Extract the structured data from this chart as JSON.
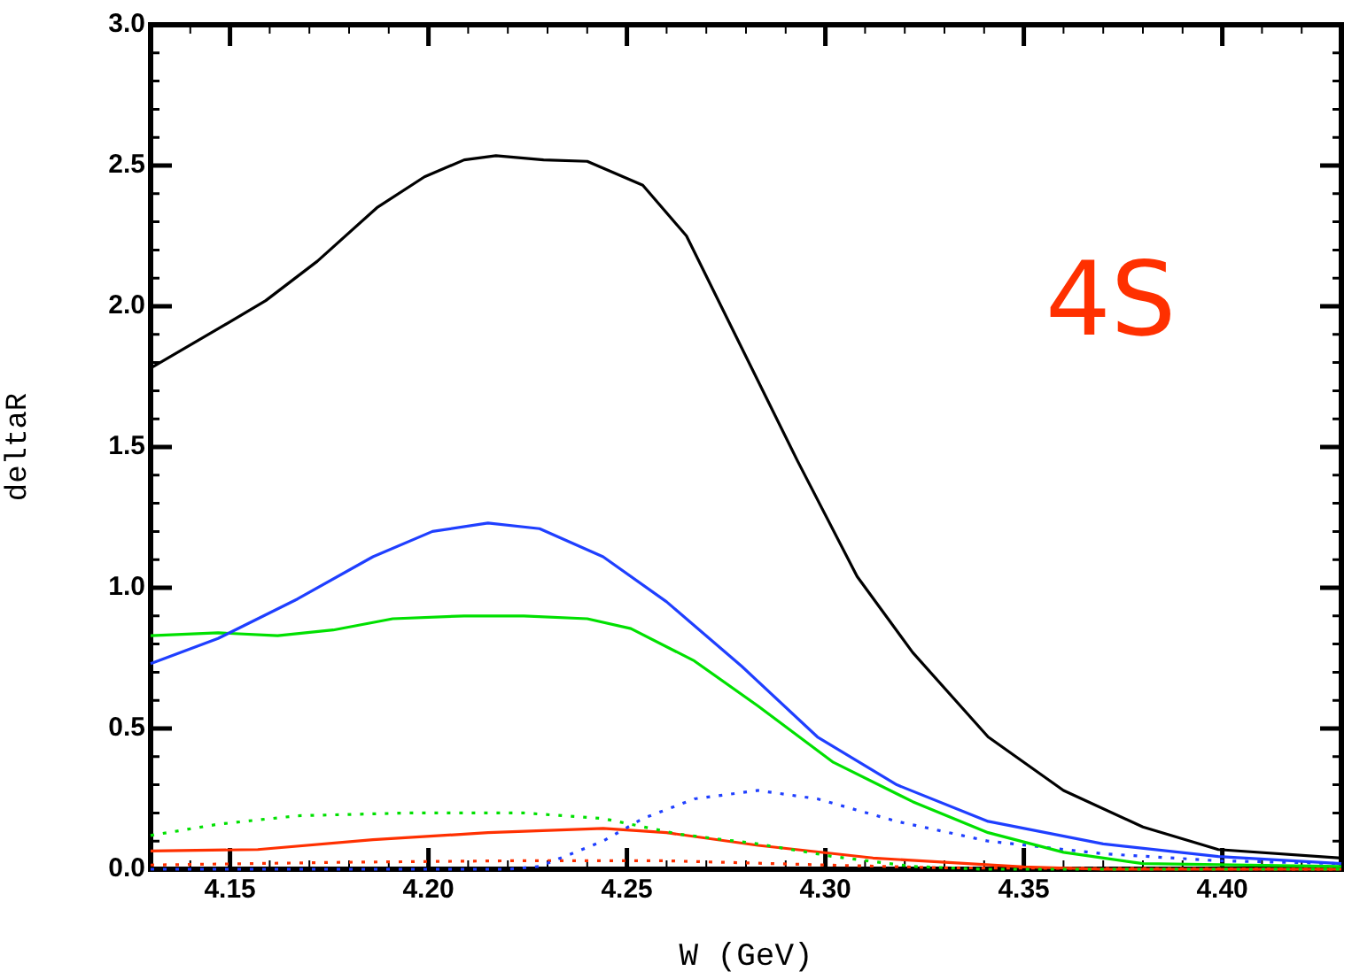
{
  "chart_data": {
    "type": "line",
    "xlabel": "W (GeV)",
    "ylabel": "deltaR",
    "annotations": [
      "4S"
    ],
    "xlim": [
      4.13,
      4.43
    ],
    "ylim": [
      0,
      3.0
    ],
    "xticks": [
      {
        "value": 4.13,
        "label": null
      },
      {
        "value": 4.14,
        "label": null
      },
      {
        "value": 4.15,
        "label": "4.15"
      },
      {
        "value": 4.16,
        "label": null
      },
      {
        "value": 4.17,
        "label": null
      },
      {
        "value": 4.18,
        "label": null
      },
      {
        "value": 4.19,
        "label": null
      },
      {
        "value": 4.2,
        "label": "4.20"
      },
      {
        "value": 4.21,
        "label": null
      },
      {
        "value": 4.22,
        "label": null
      },
      {
        "value": 4.23,
        "label": null
      },
      {
        "value": 4.24,
        "label": null
      },
      {
        "value": 4.25,
        "label": "4.25"
      },
      {
        "value": 4.26,
        "label": null
      },
      {
        "value": 4.27,
        "label": null
      },
      {
        "value": 4.28,
        "label": null
      },
      {
        "value": 4.29,
        "label": null
      },
      {
        "value": 4.3,
        "label": "4.30"
      },
      {
        "value": 4.31,
        "label": null
      },
      {
        "value": 4.32,
        "label": null
      },
      {
        "value": 4.33,
        "label": null
      },
      {
        "value": 4.34,
        "label": null
      },
      {
        "value": 4.35,
        "label": "4.35"
      },
      {
        "value": 4.36,
        "label": null
      },
      {
        "value": 4.37,
        "label": null
      },
      {
        "value": 4.38,
        "label": null
      },
      {
        "value": 4.39,
        "label": null
      },
      {
        "value": 4.4,
        "label": "4.40"
      },
      {
        "value": 4.41,
        "label": null
      },
      {
        "value": 4.42,
        "label": null
      }
    ],
    "yticks": [
      {
        "value": 0,
        "label": "0.0"
      },
      {
        "value": 0.1,
        "label": null
      },
      {
        "value": 0.2,
        "label": null
      },
      {
        "value": 0.3,
        "label": null
      },
      {
        "value": 0.4,
        "label": null
      },
      {
        "value": 0.5,
        "label": "0.5"
      },
      {
        "value": 0.6,
        "label": null
      },
      {
        "value": 0.7,
        "label": null
      },
      {
        "value": 0.8,
        "label": null
      },
      {
        "value": 0.9,
        "label": null
      },
      {
        "value": 1.0,
        "label": "1.0"
      },
      {
        "value": 1.1,
        "label": null
      },
      {
        "value": 1.2,
        "label": null
      },
      {
        "value": 1.3,
        "label": null
      },
      {
        "value": 1.4,
        "label": null
      },
      {
        "value": 1.5,
        "label": "1.5"
      },
      {
        "value": 1.6,
        "label": null
      },
      {
        "value": 1.7,
        "label": null
      },
      {
        "value": 1.8,
        "label": null
      },
      {
        "value": 1.9,
        "label": null
      },
      {
        "value": 2.0,
        "label": "2.0"
      },
      {
        "value": 2.1,
        "label": null
      },
      {
        "value": 2.2,
        "label": null
      },
      {
        "value": 2.3,
        "label": null
      },
      {
        "value": 2.4,
        "label": null
      },
      {
        "value": 2.5,
        "label": "2.5"
      },
      {
        "value": 2.6,
        "label": null
      },
      {
        "value": 2.7,
        "label": null
      },
      {
        "value": 2.8,
        "label": null
      },
      {
        "value": 2.9,
        "label": null
      },
      {
        "value": 3.0,
        "label": "3.0"
      }
    ],
    "grid": false,
    "legend": false,
    "marker": "none",
    "series": [
      {
        "color": "#000000",
        "line_style": "solid",
        "x": [
          4.13,
          4.147,
          4.159,
          4.172,
          4.187,
          4.199,
          4.209,
          4.217,
          4.229,
          4.24,
          4.254,
          4.265,
          4.279,
          4.293,
          4.308,
          4.322,
          4.341,
          4.36,
          4.38,
          4.399,
          4.43
        ],
        "values": [
          1.78,
          1.92,
          2.02,
          2.16,
          2.35,
          2.46,
          2.52,
          2.535,
          2.52,
          2.515,
          2.43,
          2.25,
          1.85,
          1.45,
          1.04,
          0.77,
          0.47,
          0.28,
          0.15,
          0.07,
          0.04
        ]
      },
      {
        "color": "#1f3fff",
        "line_style": "solid",
        "x": [
          4.13,
          4.147,
          4.167,
          4.186,
          4.201,
          4.215,
          4.228,
          4.244,
          4.26,
          4.279,
          4.298,
          4.318,
          4.341,
          4.37,
          4.399,
          4.43
        ],
        "values": [
          0.73,
          0.82,
          0.96,
          1.11,
          1.2,
          1.23,
          1.21,
          1.11,
          0.95,
          0.72,
          0.47,
          0.3,
          0.17,
          0.09,
          0.045,
          0.02
        ]
      },
      {
        "color": "#00e000",
        "line_style": "solid",
        "x": [
          4.13,
          4.147,
          4.162,
          4.176,
          4.191,
          4.209,
          4.224,
          4.24,
          4.251,
          4.267,
          4.283,
          4.302,
          4.322,
          4.341,
          4.36,
          4.38,
          4.43
        ],
        "values": [
          0.83,
          0.84,
          0.83,
          0.85,
          0.89,
          0.9,
          0.9,
          0.89,
          0.855,
          0.74,
          0.58,
          0.38,
          0.24,
          0.13,
          0.06,
          0.02,
          0.01
        ]
      },
      {
        "color": "#00e000",
        "line_style": "dotted",
        "x": [
          4.13,
          4.147,
          4.167,
          4.195,
          4.224,
          4.244,
          4.263,
          4.283,
          4.302,
          4.322,
          4.34,
          4.43
        ],
        "values": [
          0.12,
          0.16,
          0.19,
          0.2,
          0.2,
          0.18,
          0.125,
          0.09,
          0.045,
          0.01,
          0,
          0
        ]
      },
      {
        "color": "#1f3fff",
        "line_style": "dotted",
        "x": [
          4.13,
          4.22,
          4.228,
          4.244,
          4.254,
          4.267,
          4.283,
          4.298,
          4.318,
          4.341,
          4.37,
          4.399,
          4.43
        ],
        "values": [
          0,
          0,
          0.01,
          0.1,
          0.18,
          0.25,
          0.28,
          0.25,
          0.17,
          0.1,
          0.055,
          0.03,
          0.02
        ]
      },
      {
        "color": "#ff3000",
        "line_style": "solid",
        "x": [
          4.13,
          4.157,
          4.186,
          4.215,
          4.244,
          4.26,
          4.283,
          4.312,
          4.35,
          4.37,
          4.43
        ],
        "values": [
          0.065,
          0.07,
          0.105,
          0.13,
          0.145,
          0.13,
          0.085,
          0.04,
          0.008,
          0,
          0
        ]
      },
      {
        "color": "#ff3000",
        "line_style": "dotted",
        "x": [
          4.13,
          4.18,
          4.22,
          4.26,
          4.3,
          4.33,
          4.43
        ],
        "values": [
          0.015,
          0.025,
          0.03,
          0.03,
          0.015,
          0.005,
          0
        ]
      }
    ]
  }
}
